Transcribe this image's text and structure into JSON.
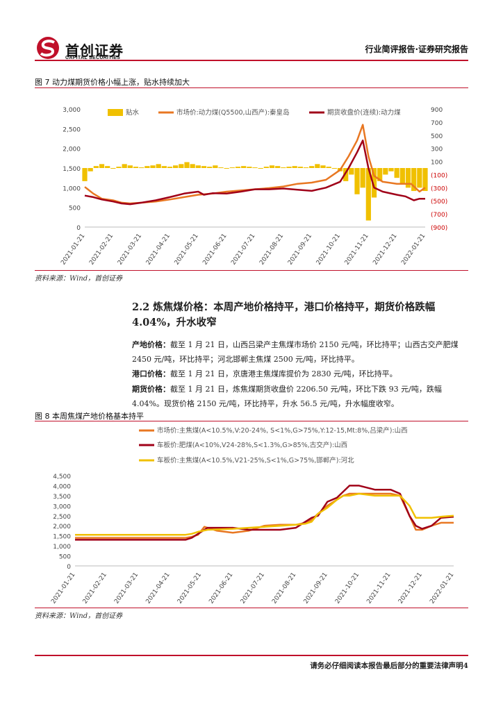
{
  "header": {
    "brand": "首创证券",
    "brand_en": "CAPITAL SECURITIES",
    "right": "行业简评报告·证券研究报告"
  },
  "figure7": {
    "title": "图 7 动力煤期货价格小幅上涨，贴水持续加大",
    "source": "资料来源：Wind，首创证券"
  },
  "section": {
    "title": "2.2 炼焦煤价格：本周产地价格持平，港口价格持平，期货价格跌幅 4.04%，升水收窄",
    "p1_label": "产地价格：",
    "p1_text": "截至 1 月 21 日，山西吕梁产主焦煤市场价 2150 元/吨，环比持平；山西古交产肥煤 2450 元/吨，环比持平；河北邯郸主焦煤 2500 元/吨，环比持平。",
    "p2_label": "港口价格：",
    "p2_text": "截至 1 月 21 日，京唐港主焦煤库提价为 2830 元/吨，环比持平。",
    "p3_label": "期货价格：",
    "p3_text": "截至 1 月 21 日，炼焦煤期货收盘价 2206.50 元/吨，环比下跌 93 元/吨，跌幅 4.04%。现货价格 2150 元/吨，环比持平，升水 56.5 元/吨，升水幅度收窄。"
  },
  "figure8": {
    "title": "图 8 本周焦煤产地价格基本持平",
    "source": "资料来源：Wind，首创证券"
  },
  "footer": {
    "text": "请务必仔细阅读本报告最后部分的重要法律声明4"
  },
  "chart_data": [
    {
      "type": "line",
      "title": "",
      "xlabel": "",
      "ylabel": "",
      "ylim": [
        0,
        3000
      ],
      "y2lim": [
        -900,
        900
      ],
      "yticks": [
        "3,000",
        "2,500",
        "2,000",
        "1,500",
        "1,000",
        "500",
        "0"
      ],
      "y2ticks": [
        "900",
        "700",
        "500",
        "300",
        "100",
        "(100)",
        "(300)",
        "(500)",
        "(700)",
        "(900)"
      ],
      "x_ticks": [
        "2021-01-21",
        "2021-02-21",
        "2021-03-21",
        "2021-04-21",
        "2021-05-21",
        "2021-06-21",
        "2021-07-21",
        "2021-08-21",
        "2021-09-21",
        "2021-10-21",
        "2021-11-21",
        "2021-12-21",
        "2022-01-21"
      ],
      "legend_position": "top",
      "grid": false,
      "series": [
        {
          "name": "贴水",
          "axis": "right",
          "style": "bar",
          "color": "#f0c000",
          "x": [
            0,
            0.2,
            0.4,
            0.6,
            0.8,
            1,
            1.2,
            1.4,
            1.6,
            1.8,
            2,
            2.2,
            2.4,
            2.6,
            2.8,
            3,
            3.2,
            3.4,
            3.6,
            3.8,
            4,
            4.2,
            4.4,
            4.6,
            4.8,
            5,
            5.2,
            5.4,
            5.6,
            5.8,
            6,
            6.2,
            6.4,
            6.6,
            6.8,
            7,
            7.2,
            7.4,
            7.6,
            7.8,
            8,
            8.2,
            8.4,
            8.6,
            8.8,
            9,
            9.2,
            9.4,
            9.6,
            9.8,
            10,
            10.2,
            10.4,
            10.6,
            10.8,
            11,
            11.2,
            11.4,
            11.6,
            11.8,
            12
          ],
          "values": [
            -200,
            -50,
            30,
            60,
            30,
            0,
            20,
            60,
            40,
            20,
            10,
            30,
            40,
            60,
            30,
            20,
            40,
            60,
            90,
            60,
            40,
            30,
            20,
            40,
            10,
            0,
            10,
            20,
            30,
            20,
            10,
            0,
            20,
            40,
            30,
            10,
            20,
            30,
            20,
            10,
            30,
            60,
            40,
            20,
            0,
            -50,
            -200,
            -100,
            -400,
            -300,
            -800,
            -450,
            -200,
            -100,
            -50,
            -150,
            -250,
            -300,
            -350,
            -300,
            -350
          ]
        },
        {
          "name": "市场价:动力煤(Q5500,山西产):秦皇岛",
          "axis": "left",
          "color": "#e87722",
          "x": [
            0,
            0.3,
            0.6,
            1,
            1.3,
            1.6,
            2,
            2.5,
            3,
            3.5,
            4,
            4.5,
            5,
            5.5,
            6,
            6.5,
            7,
            7.5,
            8,
            8.5,
            9,
            9.3,
            9.6,
            9.8,
            10,
            10.2,
            10.5,
            11,
            11.5,
            11.8,
            12
          ],
          "values": [
            1020,
            850,
            720,
            680,
            620,
            600,
            620,
            650,
            700,
            760,
            820,
            850,
            900,
            930,
            960,
            990,
            1030,
            1100,
            1130,
            1200,
            1450,
            1800,
            2200,
            2600,
            1800,
            1300,
            1150,
            1100,
            1100,
            900,
            1000
          ]
        },
        {
          "name": "期货收盘价(连续):动力煤",
          "axis": "left",
          "color": "#a00018",
          "x": [
            0,
            0.3,
            0.6,
            1,
            1.3,
            1.6,
            2,
            2.5,
            3,
            3.5,
            4,
            4.2,
            4.5,
            5,
            5.5,
            6,
            6.5,
            7,
            7.5,
            8,
            8.5,
            9,
            9.3,
            9.6,
            9.8,
            10,
            10.2,
            10.5,
            11,
            11.3,
            11.6,
            11.8,
            12
          ],
          "values": [
            800,
            760,
            700,
            650,
            600,
            580,
            620,
            680,
            760,
            850,
            900,
            820,
            860,
            850,
            900,
            960,
            960,
            980,
            950,
            920,
            1000,
            1150,
            1500,
            1900,
            2200,
            1500,
            1000,
            900,
            820,
            780,
            680,
            720,
            720
          ]
        }
      ]
    },
    {
      "type": "line",
      "title": "",
      "xlabel": "",
      "ylabel": "",
      "ylim": [
        0,
        4500
      ],
      "yticks": [
        "4,500",
        "4,000",
        "3,500",
        "3,000",
        "2,500",
        "2,000",
        "1,500",
        "1,000",
        "500",
        "0"
      ],
      "x_ticks": [
        "2021-01-21",
        "2021-02-21",
        "2021-03-21",
        "2021-04-21",
        "2021-05-21",
        "2021-06-21",
        "2021-07-21",
        "2021-08-21",
        "2021-09-21",
        "2021-10-21",
        "2021-11-21",
        "2021-12-21",
        "2022-01-21"
      ],
      "legend_position": "top",
      "grid": false,
      "series": [
        {
          "name": "市场价:主焦煤(A<10.5%,V:20-24%, S<1%,G>75%,Y:12-15,Mt:8%,吕梁产):山西",
          "color": "#e87722",
          "x": [
            0,
            3.5,
            3.7,
            3.9,
            4.1,
            4.5,
            5,
            5.5,
            6,
            6.5,
            7,
            7.3,
            7.5,
            7.7,
            8,
            8.3,
            8.5,
            8.7,
            9,
            9.5,
            10,
            10.3,
            10.6,
            10.8,
            11,
            11.3,
            11.6,
            12
          ],
          "values": [
            1400,
            1400,
            1450,
            1550,
            1950,
            1750,
            1650,
            1750,
            2000,
            2050,
            2050,
            2150,
            2300,
            2600,
            3000,
            3300,
            3500,
            3600,
            3600,
            3600,
            3600,
            3500,
            2500,
            1800,
            1800,
            2000,
            2150,
            2150
          ]
        },
        {
          "name": "车板价:肥煤(A<10%,V24-28%,S<1.3%,G>85%,古交产):山西",
          "color": "#a00018",
          "x": [
            0,
            3.5,
            3.7,
            3.9,
            4.2,
            5,
            5.5,
            6,
            6.5,
            7,
            7.3,
            7.5,
            7.7,
            8,
            8.3,
            8.5,
            8.7,
            9,
            9.5,
            10,
            10.3,
            10.6,
            10.8,
            11,
            11.3,
            11.6,
            12
          ],
          "values": [
            1300,
            1300,
            1400,
            1600,
            1900,
            1900,
            1800,
            1800,
            1800,
            1900,
            2200,
            2400,
            2500,
            3200,
            3400,
            3700,
            4000,
            4000,
            3800,
            3800,
            3600,
            2500,
            2000,
            1850,
            2000,
            2400,
            2450
          ]
        },
        {
          "name": "车板价:主焦煤(A<10.5%,V21-25%,S<1%,G>75%,邯郸产):河北",
          "color": "#f0c000",
          "x": [
            0,
            3.5,
            3.7,
            3.9,
            4.2,
            5,
            5.5,
            6,
            6.5,
            7,
            7.3,
            7.5,
            7.7,
            8,
            8.3,
            8.5,
            8.7,
            9,
            9.5,
            10,
            10.3,
            10.6,
            10.8,
            11,
            11.3,
            11.6,
            12
          ],
          "values": [
            1550,
            1550,
            1600,
            1700,
            1800,
            1850,
            1900,
            1950,
            2000,
            2050,
            2100,
            2200,
            2600,
            2900,
            3300,
            3500,
            3500,
            3600,
            3500,
            3500,
            3500,
            3000,
            2400,
            2400,
            2400,
            2450,
            2500
          ]
        }
      ]
    }
  ]
}
